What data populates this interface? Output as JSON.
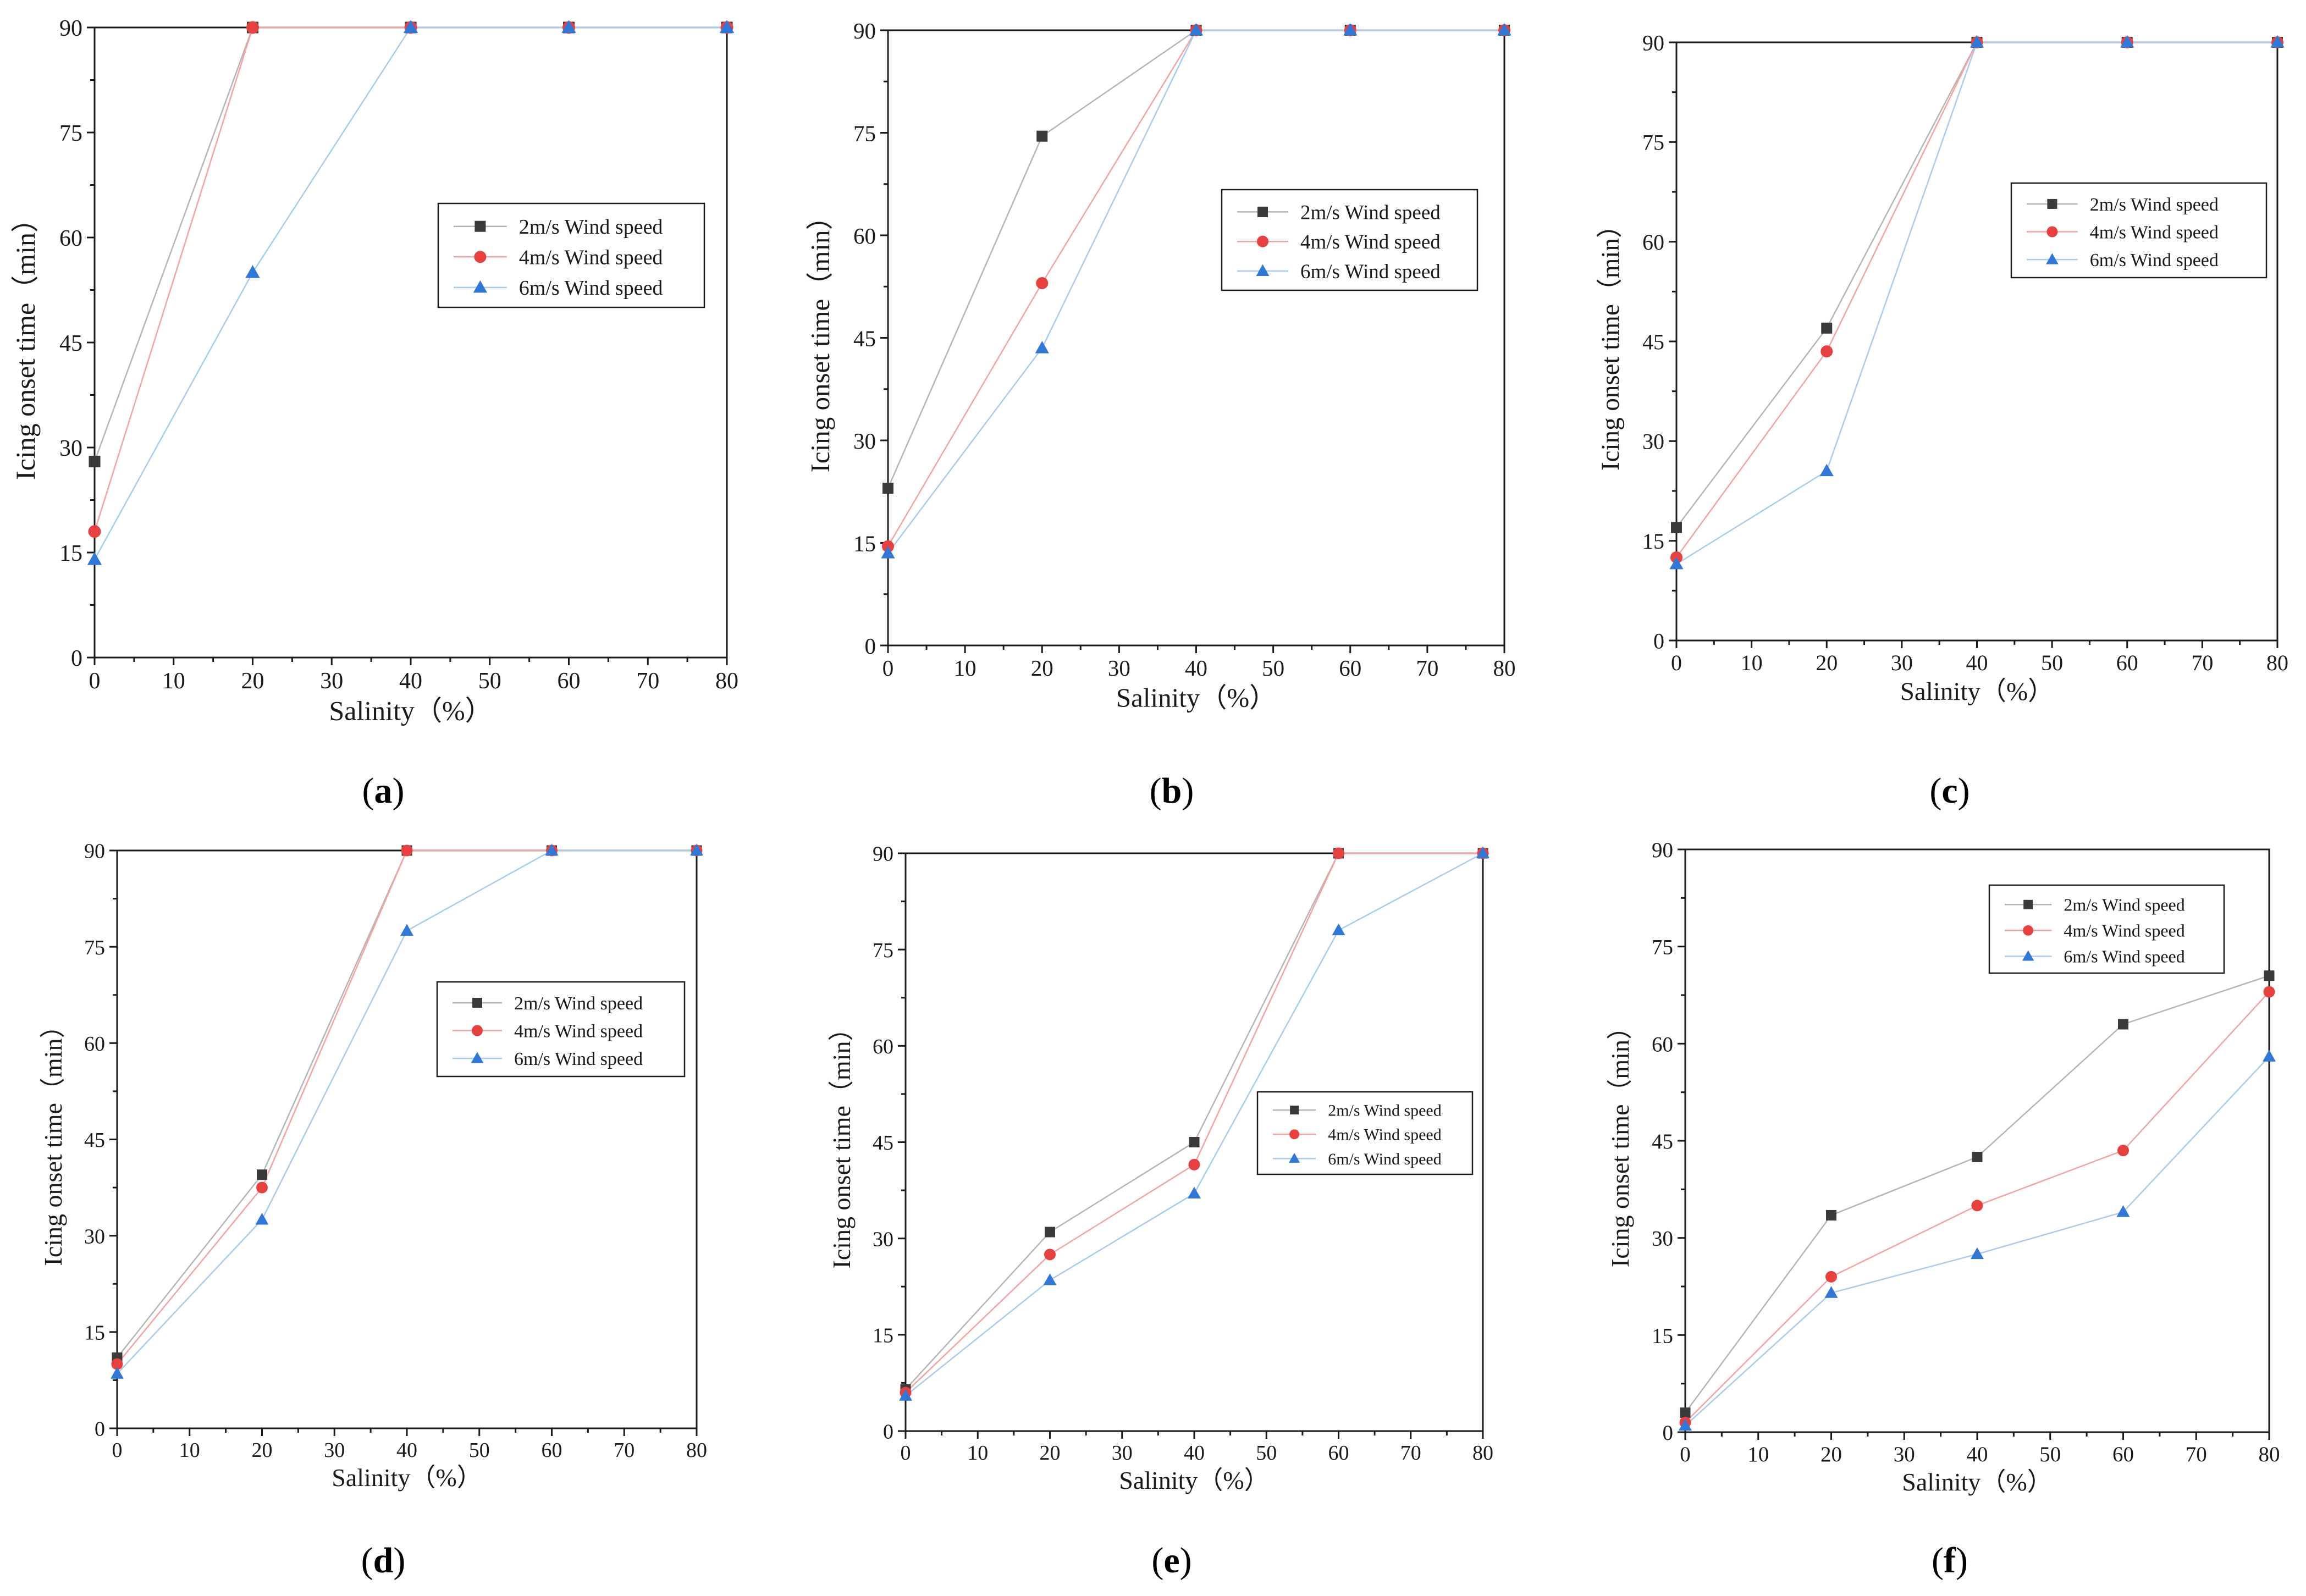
{
  "figure": {
    "x_axis_label": "Salinity（%）",
    "y_axis_label": "Icing onset time（min）"
  },
  "series_styles": [
    {
      "name": "2m/s Wind speed",
      "line_color": "#b5b5b5",
      "marker_color": "#3a3a3a",
      "marker": "square"
    },
    {
      "name": "4m/s Wind speed",
      "line_color": "#f4a3a3",
      "marker_color": "#e8403f",
      "marker": "circle"
    },
    {
      "name": "6m/s Wind speed",
      "line_color": "#a8cbee",
      "marker_color": "#2f78d8",
      "marker": "triangle"
    }
  ],
  "chart_data": [
    {
      "panel": "a",
      "type": "line",
      "xlabel": "Salinity（%）",
      "ylabel": "Icing onset time（min）",
      "xlim": [
        0,
        80
      ],
      "ylim": [
        0,
        90
      ],
      "x_ticks": [
        0,
        10,
        20,
        30,
        40,
        50,
        60,
        70,
        80
      ],
      "y_ticks": [
        0,
        15,
        30,
        45,
        60,
        75,
        90
      ],
      "x": [
        0,
        20,
        40,
        60,
        80
      ],
      "legend_position": "middle-right",
      "series": [
        {
          "name": "2m/s Wind speed",
          "values": [
            28,
            90,
            90,
            90,
            90
          ]
        },
        {
          "name": "4m/s Wind speed",
          "values": [
            18,
            90,
            90,
            90,
            90
          ]
        },
        {
          "name": "6m/s Wind speed",
          "values": [
            14,
            55,
            90,
            90,
            90
          ]
        }
      ]
    },
    {
      "panel": "b",
      "type": "line",
      "xlabel": "Salinity（%）",
      "ylabel": "Icing onset time（min）",
      "xlim": [
        0,
        80
      ],
      "ylim": [
        0,
        90
      ],
      "x_ticks": [
        0,
        10,
        20,
        30,
        40,
        50,
        60,
        70,
        80
      ],
      "y_ticks": [
        0,
        15,
        30,
        45,
        60,
        75,
        90
      ],
      "x": [
        0,
        20,
        40,
        60,
        80
      ],
      "legend_position": "upper-right",
      "series": [
        {
          "name": "2m/s Wind speed",
          "values": [
            23,
            74.5,
            90,
            90,
            90
          ]
        },
        {
          "name": "4m/s Wind speed",
          "values": [
            14.5,
            53,
            90,
            90,
            90
          ]
        },
        {
          "name": "6m/s Wind speed",
          "values": [
            13.5,
            43.5,
            90,
            90,
            90
          ]
        }
      ]
    },
    {
      "panel": "c",
      "type": "line",
      "xlabel": "Salinity（%）",
      "ylabel": "Icing onset time（min）",
      "xlim": [
        0,
        80
      ],
      "ylim": [
        0,
        90
      ],
      "x_ticks": [
        0,
        10,
        20,
        30,
        40,
        50,
        60,
        70,
        80
      ],
      "y_ticks": [
        0,
        15,
        30,
        45,
        60,
        75,
        90
      ],
      "x": [
        0,
        20,
        40,
        60,
        80
      ],
      "legend_position": "upper-right",
      "series": [
        {
          "name": "2m/s Wind speed",
          "values": [
            17,
            47,
            90,
            90,
            90
          ]
        },
        {
          "name": "4m/s Wind speed",
          "values": [
            12.5,
            43.5,
            90,
            90,
            90
          ]
        },
        {
          "name": "6m/s Wind speed",
          "values": [
            11.5,
            25.5,
            90,
            90,
            90
          ]
        }
      ]
    },
    {
      "panel": "d",
      "type": "line",
      "xlabel": "Salinity（%）",
      "ylabel": "Icing onset time（min）",
      "xlim": [
        0,
        80
      ],
      "ylim": [
        0,
        90
      ],
      "x_ticks": [
        0,
        10,
        20,
        30,
        40,
        50,
        60,
        70,
        80
      ],
      "y_ticks": [
        0,
        15,
        30,
        45,
        60,
        75,
        90
      ],
      "x": [
        0,
        20,
        40,
        60,
        80
      ],
      "legend_position": "middle-right",
      "series": [
        {
          "name": "2m/s Wind speed",
          "values": [
            11,
            39.5,
            90,
            90,
            90
          ]
        },
        {
          "name": "4m/s Wind speed",
          "values": [
            10,
            37.5,
            90,
            90,
            90
          ]
        },
        {
          "name": "6m/s Wind speed",
          "values": [
            8.5,
            32.5,
            77.5,
            90,
            90
          ]
        }
      ]
    },
    {
      "panel": "e",
      "type": "line",
      "xlabel": "Salinity（%）",
      "ylabel": "Icing onset time（min）",
      "xlim": [
        0,
        80
      ],
      "ylim": [
        0,
        90
      ],
      "x_ticks": [
        0,
        10,
        20,
        30,
        40,
        50,
        60,
        70,
        80
      ],
      "y_ticks": [
        0,
        15,
        30,
        45,
        60,
        75,
        90
      ],
      "x": [
        0,
        20,
        40,
        60,
        80
      ],
      "legend_position": "middle-right",
      "series": [
        {
          "name": "2m/s Wind speed",
          "values": [
            6.5,
            31,
            45,
            90,
            90
          ]
        },
        {
          "name": "4m/s Wind speed",
          "values": [
            6,
            27.5,
            41.5,
            90,
            90
          ]
        },
        {
          "name": "6m/s Wind speed",
          "values": [
            5.5,
            23.5,
            37,
            78,
            90
          ]
        }
      ]
    },
    {
      "panel": "f",
      "type": "line",
      "xlabel": "Salinity（%）",
      "ylabel": "Icing onset time（min）",
      "xlim": [
        0,
        80
      ],
      "ylim": [
        0,
        90
      ],
      "x_ticks": [
        0,
        10,
        20,
        30,
        40,
        50,
        60,
        70,
        80
      ],
      "y_ticks": [
        0,
        15,
        30,
        45,
        60,
        75,
        90
      ],
      "x": [
        0,
        20,
        40,
        60,
        80
      ],
      "legend_position": "upper-right",
      "series": [
        {
          "name": "2m/s Wind speed",
          "values": [
            3,
            33.5,
            42.5,
            63,
            70.5
          ]
        },
        {
          "name": "4m/s Wind speed",
          "values": [
            1.5,
            24,
            35,
            43.5,
            68
          ]
        },
        {
          "name": "6m/s Wind speed",
          "values": [
            1,
            21.5,
            27.5,
            34,
            58
          ]
        }
      ]
    }
  ]
}
